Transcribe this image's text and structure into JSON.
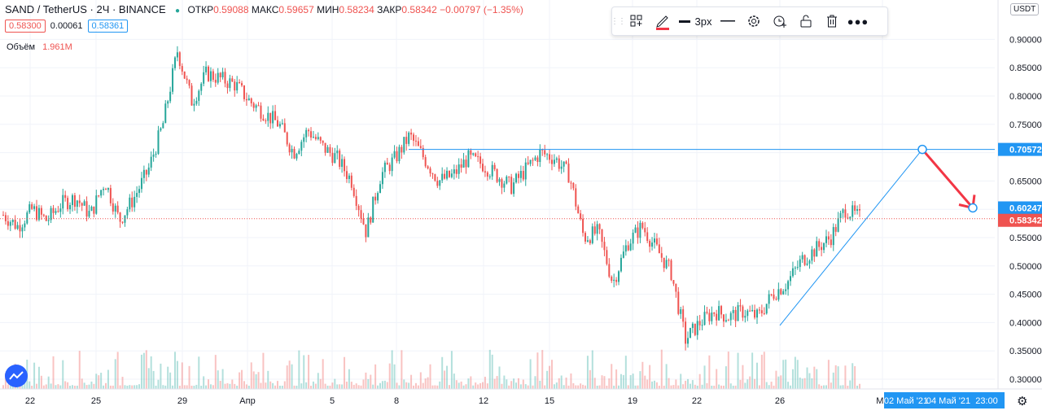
{
  "header": {
    "symbol": "SAND / TetherUS · 2Ч · BINANCE",
    "o_label": "ОТКР",
    "o_value": "0.59088",
    "h_label": "МАКС",
    "h_value": "0.59657",
    "l_label": "МИН",
    "l_value": "0.58234",
    "c_label": "ЗАКР",
    "c_value": "0.58342",
    "change": "−0.00797 (−1.35%)",
    "bid": "0.58300",
    "spread": "0.00061",
    "ask": "0.58361",
    "volume_label": "Объём",
    "volume_value": "1.961M"
  },
  "toolbar": {
    "line_width_label": "3px"
  },
  "currency": "USDT",
  "colors": {
    "up": "#26a69a",
    "down": "#ef5350",
    "line": "#2196f3",
    "arrow": "#f23645"
  },
  "chart_data": {
    "type": "candlestick",
    "y_axis": {
      "range": [
        0.285,
        0.93
      ],
      "ticks": [
        "0.30000",
        "0.35000",
        "0.40000",
        "0.45000",
        "0.50000",
        "0.55000",
        "0.60000",
        "0.65000",
        "0.70000",
        "0.75000",
        "0.80000",
        "0.85000",
        "0.90000"
      ]
    },
    "x_axis": {
      "ticks": [
        "22",
        "25",
        "29",
        "Апр",
        "5",
        "8",
        "12",
        "15",
        "19",
        "22",
        "26",
        "Ма"
      ],
      "highlight_labels": [
        "02 Май '21",
        "04 Май '21",
        "23:00"
      ]
    },
    "price_labels": {
      "line": "0.70572",
      "target": "0.60247",
      "last": "0.58342"
    },
    "series_anchors": [
      [
        0.59,
        0.575
      ],
      [
        0.57,
        0.565
      ],
      [
        0.6,
        0.545
      ],
      [
        0.58,
        0.525
      ],
      [
        0.61,
        0.555
      ],
      [
        0.62,
        0.58
      ],
      [
        0.59,
        0.56
      ],
      [
        0.65,
        0.6
      ],
      [
        0.58,
        0.56
      ],
      [
        0.62,
        0.57
      ],
      [
        0.67,
        0.61
      ],
      [
        0.75,
        0.7
      ],
      [
        0.88,
        0.83
      ],
      [
        0.79,
        0.77
      ],
      [
        0.84,
        0.8
      ],
      [
        0.83,
        0.79
      ],
      [
        0.82,
        0.78
      ],
      [
        0.79,
        0.75
      ],
      [
        0.77,
        0.74
      ],
      [
        0.75,
        0.73
      ],
      [
        0.7,
        0.68
      ],
      [
        0.74,
        0.71
      ],
      [
        0.71,
        0.68
      ],
      [
        0.69,
        0.66
      ],
      [
        0.65,
        0.62
      ],
      [
        0.56,
        0.54
      ],
      [
        0.66,
        0.65
      ],
      [
        0.69,
        0.68
      ],
      [
        0.73,
        0.7
      ],
      [
        0.69,
        0.66
      ],
      [
        0.65,
        0.63
      ],
      [
        0.66,
        0.64
      ],
      [
        0.69,
        0.68
      ],
      [
        0.68,
        0.66
      ],
      [
        0.66,
        0.645
      ],
      [
        0.64,
        0.63
      ],
      [
        0.67,
        0.66
      ],
      [
        0.7,
        0.68
      ],
      [
        0.69,
        0.67
      ],
      [
        0.66,
        0.64
      ],
      [
        0.55,
        0.56
      ],
      [
        0.56,
        0.545
      ],
      [
        0.47,
        0.49
      ],
      [
        0.54,
        0.52
      ],
      [
        0.57,
        0.55
      ],
      [
        0.53,
        0.5
      ],
      [
        0.49,
        0.47
      ],
      [
        0.37,
        0.35
      ],
      [
        0.4,
        0.39
      ],
      [
        0.42,
        0.41
      ],
      [
        0.41,
        0.4
      ],
      [
        0.42,
        0.41
      ],
      [
        0.41,
        0.4
      ],
      [
        0.45,
        0.44
      ],
      [
        0.47,
        0.46
      ],
      [
        0.51,
        0.5
      ],
      [
        0.53,
        0.52
      ],
      [
        0.55,
        0.54
      ],
      [
        0.6,
        0.59
      ],
      [
        0.585,
        0.583
      ]
    ],
    "annotations": {
      "horizontal_line": {
        "price": 0.70572,
        "from_label": "8"
      },
      "trend_line": {
        "from": {
          "x": "26",
          "y": 0.395
        },
        "to": {
          "x": "02 Май '21",
          "y": 0.70572
        }
      },
      "target": {
        "x": "04 Май '21",
        "y": 0.60247
      }
    }
  }
}
